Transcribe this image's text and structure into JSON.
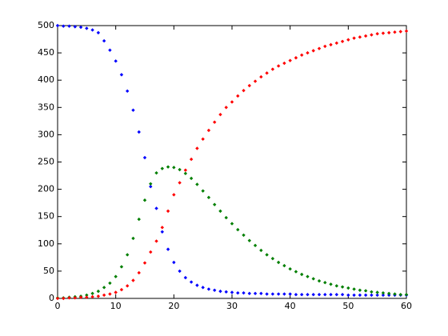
{
  "chart_data": {
    "type": "scatter",
    "x": [
      0,
      1,
      2,
      3,
      4,
      5,
      6,
      7,
      8,
      9,
      10,
      11,
      12,
      13,
      14,
      15,
      16,
      17,
      18,
      19,
      20,
      21,
      22,
      23,
      24,
      25,
      26,
      27,
      28,
      29,
      30,
      31,
      32,
      33,
      34,
      35,
      36,
      37,
      38,
      39,
      40,
      41,
      42,
      43,
      44,
      45,
      46,
      47,
      48,
      49,
      50,
      51,
      52,
      53,
      54,
      55,
      56,
      57,
      58,
      59,
      60
    ],
    "series": [
      {
        "color": "#0000ff",
        "values": [
          500,
          499,
          499,
          498,
          497,
          495,
          492,
          487,
          472,
          455,
          435,
          410,
          380,
          345,
          305,
          258,
          205,
          165,
          122,
          90,
          66,
          50,
          38,
          30,
          24,
          20,
          17,
          15,
          13,
          12,
          11,
          10,
          10,
          9,
          9,
          9,
          8,
          8,
          8,
          8,
          8,
          7,
          7,
          7,
          7,
          7,
          7,
          7,
          7,
          7,
          6,
          6,
          6,
          6,
          6,
          6,
          6,
          6,
          6,
          6,
          6
        ]
      },
      {
        "color": "#007f00",
        "values": [
          1,
          1,
          2,
          3,
          4,
          6,
          9,
          13,
          20,
          28,
          40,
          58,
          80,
          110,
          145,
          180,
          210,
          230,
          238,
          241,
          240,
          236,
          229,
          220,
          209,
          197,
          185,
          172,
          160,
          148,
          137,
          126,
          116,
          106,
          97,
          88,
          80,
          73,
          66,
          60,
          54,
          49,
          44,
          40,
          36,
          32,
          29,
          26,
          23,
          21,
          19,
          17,
          15,
          14,
          12,
          11,
          10,
          9,
          8,
          7,
          7
        ]
      },
      {
        "color": "#ff0000",
        "values": [
          0,
          0,
          1,
          1,
          2,
          2,
          3,
          4,
          6,
          8,
          11,
          16,
          23,
          33,
          47,
          65,
          85,
          105,
          130,
          160,
          190,
          212,
          235,
          255,
          275,
          292,
          308,
          323,
          337,
          350,
          360,
          371,
          381,
          390,
          398,
          406,
          413,
          420,
          426,
          431,
          436,
          441,
          446,
          450,
          454,
          458,
          462,
          465,
          468,
          471,
          474,
          477,
          479,
          481,
          483,
          485,
          486,
          487,
          488,
          489,
          490
        ]
      }
    ],
    "xlim": [
      0,
      60
    ],
    "ylim": [
      0,
      500
    ],
    "xticks": [
      0,
      10,
      20,
      30,
      40,
      50,
      60
    ],
    "yticks": [
      0,
      50,
      100,
      150,
      200,
      250,
      300,
      350,
      400,
      450,
      500
    ]
  }
}
